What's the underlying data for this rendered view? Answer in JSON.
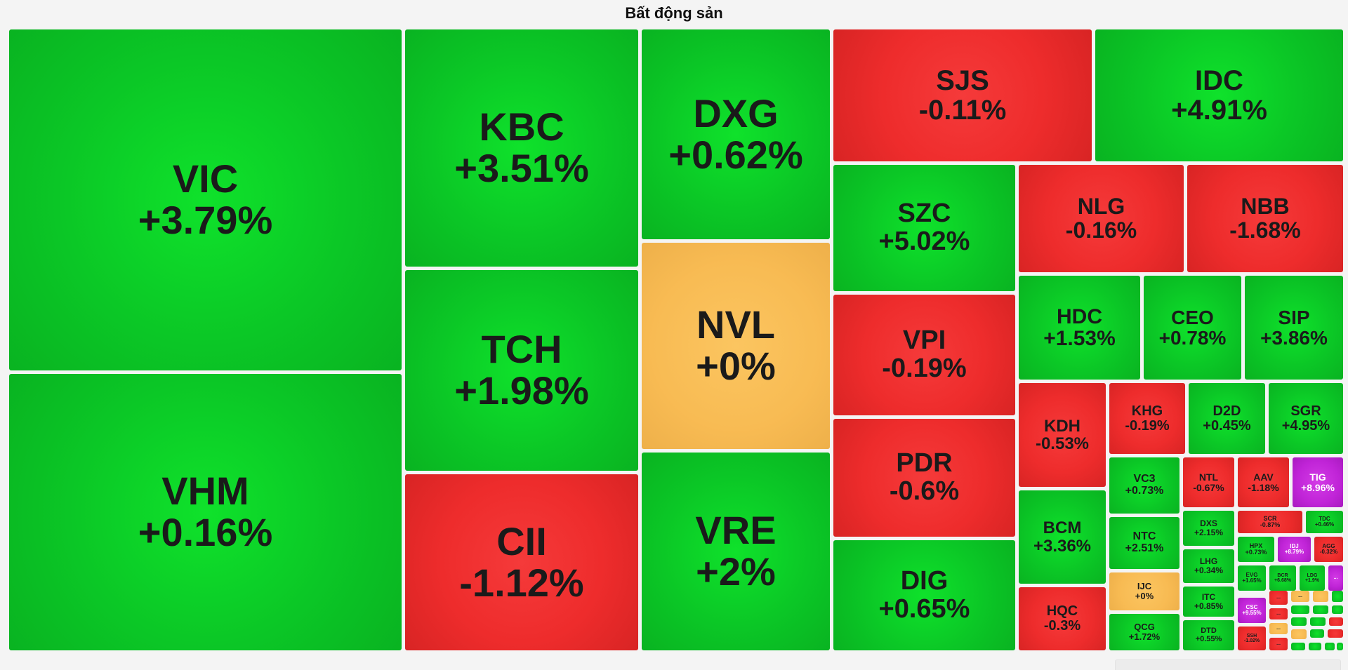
{
  "title": "Bất động sản",
  "chart_data": {
    "type": "treemap",
    "title": "Bất động sản",
    "colors": {
      "up": "#0bc726",
      "down": "#ee2c2c",
      "unchanged": "#f8bb53",
      "ceiling": "#c024d7"
    },
    "cells": [
      {
        "ticker": "VIC",
        "change": "+3.79%",
        "value": 3.79,
        "status": "up"
      },
      {
        "ticker": "VHM",
        "change": "+0.16%",
        "value": 0.16,
        "status": "up"
      },
      {
        "ticker": "KBC",
        "change": "+3.51%",
        "value": 3.51,
        "status": "up"
      },
      {
        "ticker": "TCH",
        "change": "+1.98%",
        "value": 1.98,
        "status": "up"
      },
      {
        "ticker": "CII",
        "change": "-1.12%",
        "value": -1.12,
        "status": "down"
      },
      {
        "ticker": "DXG",
        "change": "+0.62%",
        "value": 0.62,
        "status": "up"
      },
      {
        "ticker": "NVL",
        "change": "+0%",
        "value": 0,
        "status": "unchanged"
      },
      {
        "ticker": "VRE",
        "change": "+2%",
        "value": 2,
        "status": "up"
      },
      {
        "ticker": "SJS",
        "change": "-0.11%",
        "value": -0.11,
        "status": "down"
      },
      {
        "ticker": "IDC",
        "change": "+4.91%",
        "value": 4.91,
        "status": "up"
      },
      {
        "ticker": "SZC",
        "change": "+5.02%",
        "value": 5.02,
        "status": "up"
      },
      {
        "ticker": "VPI",
        "change": "-0.19%",
        "value": -0.19,
        "status": "down"
      },
      {
        "ticker": "PDR",
        "change": "-0.6%",
        "value": -0.6,
        "status": "down"
      },
      {
        "ticker": "DIG",
        "change": "+0.65%",
        "value": 0.65,
        "status": "up"
      },
      {
        "ticker": "NLG",
        "change": "-0.16%",
        "value": -0.16,
        "status": "down"
      },
      {
        "ticker": "NBB",
        "change": "-1.68%",
        "value": -1.68,
        "status": "down"
      },
      {
        "ticker": "HDC",
        "change": "+1.53%",
        "value": 1.53,
        "status": "up"
      },
      {
        "ticker": "CEO",
        "change": "+0.78%",
        "value": 0.78,
        "status": "up"
      },
      {
        "ticker": "SIP",
        "change": "+3.86%",
        "value": 3.86,
        "status": "up"
      },
      {
        "ticker": "KDH",
        "change": "-0.53%",
        "value": -0.53,
        "status": "down"
      },
      {
        "ticker": "KHG",
        "change": "-0.19%",
        "value": -0.19,
        "status": "down"
      },
      {
        "ticker": "D2D",
        "change": "+0.45%",
        "value": 0.45,
        "status": "up"
      },
      {
        "ticker": "SGR",
        "change": "+4.95%",
        "value": 4.95,
        "status": "up"
      },
      {
        "ticker": "BCM",
        "change": "+3.36%",
        "value": 3.36,
        "status": "up"
      },
      {
        "ticker": "HQC",
        "change": "-0.3%",
        "value": -0.3,
        "status": "down"
      },
      {
        "ticker": "VC3",
        "change": "+0.73%",
        "value": 0.73,
        "status": "up"
      },
      {
        "ticker": "NTC",
        "change": "+2.51%",
        "value": 2.51,
        "status": "up"
      },
      {
        "ticker": "IJC",
        "change": "+0%",
        "value": 0,
        "status": "unchanged"
      },
      {
        "ticker": "QCG",
        "change": "+1.72%",
        "value": 1.72,
        "status": "up"
      },
      {
        "ticker": "NTL",
        "change": "-0.67%",
        "value": -0.67,
        "status": "down"
      },
      {
        "ticker": "AAV",
        "change": "-1.18%",
        "value": -1.18,
        "status": "down"
      },
      {
        "ticker": "TIG",
        "change": "+8.96%",
        "value": 8.96,
        "status": "ceiling"
      },
      {
        "ticker": "DXS",
        "change": "+2.15%",
        "value": 2.15,
        "status": "up"
      },
      {
        "ticker": "LHG",
        "change": "+0.34%",
        "value": 0.34,
        "status": "up"
      },
      {
        "ticker": "ITC",
        "change": "+0.85%",
        "value": 0.85,
        "status": "up"
      },
      {
        "ticker": "DTD",
        "change": "+0.55%",
        "value": 0.55,
        "status": "up"
      },
      {
        "ticker": "SCR",
        "change": "-0.87%",
        "value": -0.87,
        "status": "down"
      },
      {
        "ticker": "TDC",
        "change": "+0.46%",
        "value": 0.46,
        "status": "up"
      },
      {
        "ticker": "HPX",
        "change": "+0.73%",
        "value": 0.73,
        "status": "up"
      },
      {
        "ticker": "IDJ",
        "change": "+8.79%",
        "value": 8.79,
        "status": "ceiling"
      },
      {
        "ticker": "AGG",
        "change": "-0.32%",
        "value": -0.32,
        "status": "down"
      },
      {
        "ticker": "EVG",
        "change": "+1.65%",
        "value": 1.65,
        "status": "up"
      },
      {
        "ticker": "BCR",
        "change": "+6.68%",
        "value": 6.68,
        "status": "up"
      },
      {
        "ticker": "LDG",
        "change": "+1.9%",
        "value": 1.9,
        "status": "up"
      },
      {
        "ticker": "CSC",
        "change": "+9.55%",
        "value": 9.55,
        "status": "ceiling"
      },
      {
        "ticker": "SSH",
        "change": "-1.02%",
        "value": -1.02,
        "status": "down"
      }
    ],
    "more_label": "..."
  }
}
